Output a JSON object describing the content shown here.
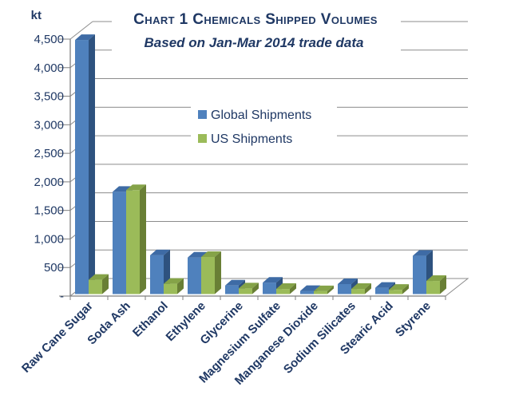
{
  "header": {
    "unit_label": "kt",
    "title": "Chart 1 Chemicals Shipped Volumes",
    "subtitle": "Based on Jan-Mar 2014 trade data"
  },
  "palette": {
    "text_navy": "#1F3864",
    "gridline": "#8C8C8C",
    "axis": "#7F7F7F",
    "global": {
      "front": "#4F81BD",
      "top": "#3E6BA5",
      "side": "#2E527F"
    },
    "us": {
      "front": "#9BBB59",
      "top": "#85A348",
      "side": "#697F35"
    }
  },
  "chart_data": {
    "type": "bar",
    "style": "3d-clustered-column",
    "title": "Chart 1 Chemicals Shipped Volumes",
    "subtitle": "Based on Jan-Mar 2014 trade data",
    "unit": "kt",
    "xlabel": "",
    "ylabel": "kt",
    "categories": [
      "Raw Cane Sugar",
      "Soda Ash",
      "Ethanol",
      "Ethylene",
      "Glycerine",
      "Magnesium Sulfate",
      "Manganese Dioxide",
      "Sodium Silicates",
      "Stearic Acid",
      "Styrene"
    ],
    "series": [
      {
        "name": "Global Shipments",
        "key": "global",
        "values": [
          4450,
          1790,
          680,
          640,
          150,
          200,
          55,
          175,
          110,
          670
        ]
      },
      {
        "name": "US Shipments",
        "key": "us",
        "values": [
          250,
          1820,
          180,
          650,
          100,
          90,
          50,
          90,
          75,
          230
        ]
      }
    ],
    "ylim": [
      0,
      4500
    ],
    "ytick_step": 500,
    "y_tick_labels": [
      "-",
      "500",
      "1,000",
      "1,500",
      "2,000",
      "2,500",
      "3,000",
      "3,500",
      "4,000",
      "4,500"
    ],
    "grid": true,
    "legend_position": "upper-center"
  }
}
